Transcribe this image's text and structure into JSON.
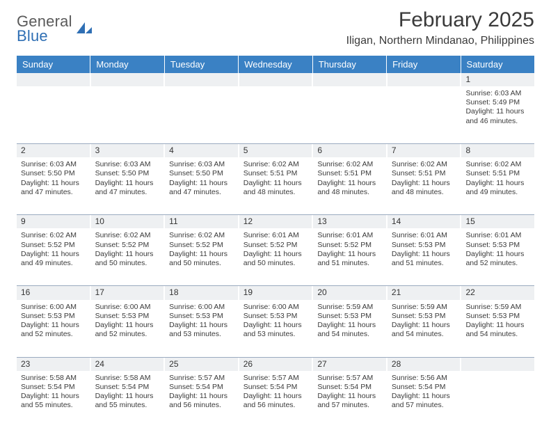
{
  "brand": {
    "general": "General",
    "blue": "Blue"
  },
  "header": {
    "month_title": "February 2025",
    "location": "Iligan, Northern Mindanao, Philippines"
  },
  "colors": {
    "header_bar": "#3a81c4",
    "header_text": "#ffffff",
    "daynum_bg": "#eef0f2",
    "rule": "#9aaabf",
    "text": "#3a3a3a",
    "logo_blue": "#2f6fb4"
  },
  "days_of_week": [
    "Sunday",
    "Monday",
    "Tuesday",
    "Wednesday",
    "Thursday",
    "Friday",
    "Saturday"
  ],
  "weeks": [
    [
      {
        "n": "",
        "lines": [
          "",
          "",
          "",
          ""
        ]
      },
      {
        "n": "",
        "lines": [
          "",
          "",
          "",
          ""
        ]
      },
      {
        "n": "",
        "lines": [
          "",
          "",
          "",
          ""
        ]
      },
      {
        "n": "",
        "lines": [
          "",
          "",
          "",
          ""
        ]
      },
      {
        "n": "",
        "lines": [
          "",
          "",
          "",
          ""
        ]
      },
      {
        "n": "",
        "lines": [
          "",
          "",
          "",
          ""
        ]
      },
      {
        "n": "1",
        "lines": [
          "Sunrise: 6:03 AM",
          "Sunset: 5:49 PM",
          "Daylight: 11 hours",
          "and 46 minutes."
        ]
      }
    ],
    [
      {
        "n": "2",
        "lines": [
          "Sunrise: 6:03 AM",
          "Sunset: 5:50 PM",
          "Daylight: 11 hours",
          "and 47 minutes."
        ]
      },
      {
        "n": "3",
        "lines": [
          "Sunrise: 6:03 AM",
          "Sunset: 5:50 PM",
          "Daylight: 11 hours",
          "and 47 minutes."
        ]
      },
      {
        "n": "4",
        "lines": [
          "Sunrise: 6:03 AM",
          "Sunset: 5:50 PM",
          "Daylight: 11 hours",
          "and 47 minutes."
        ]
      },
      {
        "n": "5",
        "lines": [
          "Sunrise: 6:02 AM",
          "Sunset: 5:51 PM",
          "Daylight: 11 hours",
          "and 48 minutes."
        ]
      },
      {
        "n": "6",
        "lines": [
          "Sunrise: 6:02 AM",
          "Sunset: 5:51 PM",
          "Daylight: 11 hours",
          "and 48 minutes."
        ]
      },
      {
        "n": "7",
        "lines": [
          "Sunrise: 6:02 AM",
          "Sunset: 5:51 PM",
          "Daylight: 11 hours",
          "and 48 minutes."
        ]
      },
      {
        "n": "8",
        "lines": [
          "Sunrise: 6:02 AM",
          "Sunset: 5:51 PM",
          "Daylight: 11 hours",
          "and 49 minutes."
        ]
      }
    ],
    [
      {
        "n": "9",
        "lines": [
          "Sunrise: 6:02 AM",
          "Sunset: 5:52 PM",
          "Daylight: 11 hours",
          "and 49 minutes."
        ]
      },
      {
        "n": "10",
        "lines": [
          "Sunrise: 6:02 AM",
          "Sunset: 5:52 PM",
          "Daylight: 11 hours",
          "and 50 minutes."
        ]
      },
      {
        "n": "11",
        "lines": [
          "Sunrise: 6:02 AM",
          "Sunset: 5:52 PM",
          "Daylight: 11 hours",
          "and 50 minutes."
        ]
      },
      {
        "n": "12",
        "lines": [
          "Sunrise: 6:01 AM",
          "Sunset: 5:52 PM",
          "Daylight: 11 hours",
          "and 50 minutes."
        ]
      },
      {
        "n": "13",
        "lines": [
          "Sunrise: 6:01 AM",
          "Sunset: 5:52 PM",
          "Daylight: 11 hours",
          "and 51 minutes."
        ]
      },
      {
        "n": "14",
        "lines": [
          "Sunrise: 6:01 AM",
          "Sunset: 5:53 PM",
          "Daylight: 11 hours",
          "and 51 minutes."
        ]
      },
      {
        "n": "15",
        "lines": [
          "Sunrise: 6:01 AM",
          "Sunset: 5:53 PM",
          "Daylight: 11 hours",
          "and 52 minutes."
        ]
      }
    ],
    [
      {
        "n": "16",
        "lines": [
          "Sunrise: 6:00 AM",
          "Sunset: 5:53 PM",
          "Daylight: 11 hours",
          "and 52 minutes."
        ]
      },
      {
        "n": "17",
        "lines": [
          "Sunrise: 6:00 AM",
          "Sunset: 5:53 PM",
          "Daylight: 11 hours",
          "and 52 minutes."
        ]
      },
      {
        "n": "18",
        "lines": [
          "Sunrise: 6:00 AM",
          "Sunset: 5:53 PM",
          "Daylight: 11 hours",
          "and 53 minutes."
        ]
      },
      {
        "n": "19",
        "lines": [
          "Sunrise: 6:00 AM",
          "Sunset: 5:53 PM",
          "Daylight: 11 hours",
          "and 53 minutes."
        ]
      },
      {
        "n": "20",
        "lines": [
          "Sunrise: 5:59 AM",
          "Sunset: 5:53 PM",
          "Daylight: 11 hours",
          "and 54 minutes."
        ]
      },
      {
        "n": "21",
        "lines": [
          "Sunrise: 5:59 AM",
          "Sunset: 5:53 PM",
          "Daylight: 11 hours",
          "and 54 minutes."
        ]
      },
      {
        "n": "22",
        "lines": [
          "Sunrise: 5:59 AM",
          "Sunset: 5:53 PM",
          "Daylight: 11 hours",
          "and 54 minutes."
        ]
      }
    ],
    [
      {
        "n": "23",
        "lines": [
          "Sunrise: 5:58 AM",
          "Sunset: 5:54 PM",
          "Daylight: 11 hours",
          "and 55 minutes."
        ]
      },
      {
        "n": "24",
        "lines": [
          "Sunrise: 5:58 AM",
          "Sunset: 5:54 PM",
          "Daylight: 11 hours",
          "and 55 minutes."
        ]
      },
      {
        "n": "25",
        "lines": [
          "Sunrise: 5:57 AM",
          "Sunset: 5:54 PM",
          "Daylight: 11 hours",
          "and 56 minutes."
        ]
      },
      {
        "n": "26",
        "lines": [
          "Sunrise: 5:57 AM",
          "Sunset: 5:54 PM",
          "Daylight: 11 hours",
          "and 56 minutes."
        ]
      },
      {
        "n": "27",
        "lines": [
          "Sunrise: 5:57 AM",
          "Sunset: 5:54 PM",
          "Daylight: 11 hours",
          "and 57 minutes."
        ]
      },
      {
        "n": "28",
        "lines": [
          "Sunrise: 5:56 AM",
          "Sunset: 5:54 PM",
          "Daylight: 11 hours",
          "and 57 minutes."
        ]
      },
      {
        "n": "",
        "lines": [
          "",
          "",
          "",
          ""
        ]
      }
    ]
  ]
}
